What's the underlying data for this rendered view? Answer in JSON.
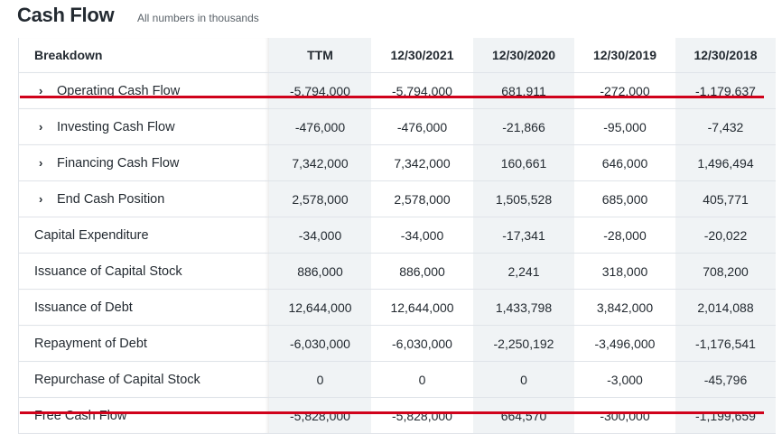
{
  "header": {
    "title": "Cash Flow",
    "subtitle": "All numbers in thousands"
  },
  "table": {
    "breakdown_label": "Breakdown",
    "columns": [
      "TTM",
      "12/30/2021",
      "12/30/2020",
      "12/30/2019",
      "12/30/2018"
    ],
    "rows": [
      {
        "label": "Operating Cash Flow",
        "expandable": true,
        "values": [
          "-5,794,000",
          "-5,794,000",
          "681,911",
          "-272,000",
          "-1,179,637"
        ]
      },
      {
        "label": "Investing Cash Flow",
        "expandable": true,
        "values": [
          "-476,000",
          "-476,000",
          "-21,866",
          "-95,000",
          "-7,432"
        ]
      },
      {
        "label": "Financing Cash Flow",
        "expandable": true,
        "values": [
          "7,342,000",
          "7,342,000",
          "160,661",
          "646,000",
          "1,496,494"
        ]
      },
      {
        "label": "End Cash Position",
        "expandable": true,
        "values": [
          "2,578,000",
          "2,578,000",
          "1,505,528",
          "685,000",
          "405,771"
        ]
      },
      {
        "label": "Capital Expenditure",
        "expandable": false,
        "values": [
          "-34,000",
          "-34,000",
          "-17,341",
          "-28,000",
          "-20,022"
        ]
      },
      {
        "label": "Issuance of Capital Stock",
        "expandable": false,
        "values": [
          "886,000",
          "886,000",
          "2,241",
          "318,000",
          "708,200"
        ]
      },
      {
        "label": "Issuance of Debt",
        "expandable": false,
        "values": [
          "12,644,000",
          "12,644,000",
          "1,433,798",
          "3,842,000",
          "2,014,088"
        ]
      },
      {
        "label": "Repayment of Debt",
        "expandable": false,
        "values": [
          "-6,030,000",
          "-6,030,000",
          "-2,250,192",
          "-3,496,000",
          "-1,176,541"
        ]
      },
      {
        "label": "Repurchase of Capital Stock",
        "expandable": false,
        "values": [
          "0",
          "0",
          "0",
          "-3,000",
          "-45,796"
        ]
      },
      {
        "label": "Free Cash Flow",
        "expandable": false,
        "values": [
          "-5,828,000",
          "-5,828,000",
          "664,570",
          "-300,000",
          "-1,199,659"
        ]
      }
    ]
  },
  "colors": {
    "highlight_line": "#d0021b",
    "shaded_column": "#f0f3f5"
  },
  "icons": {
    "expand": "chevron-right-icon"
  }
}
